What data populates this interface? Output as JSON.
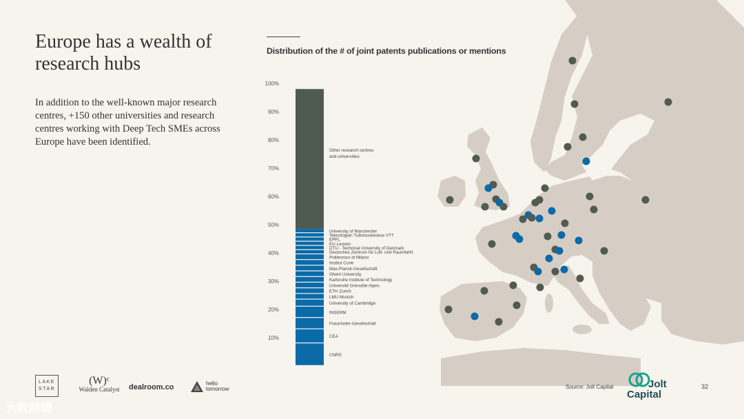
{
  "slide": {
    "title": "Europe has a wealth of research hubs",
    "body": "In addition to the well-known major research centres, +150 other universities and research centres working with Deep Tech SMEs across Europe have been identified.",
    "source": "Source: Jolt Capital",
    "page_number": "32",
    "watermark": "大数跨境"
  },
  "logos": {
    "lakestar_line1": "LAKE",
    "lakestar_line2": "STAR",
    "walden_mark": "(W)ᶜ",
    "walden_name": "Walden Catalyst",
    "dealroom": "dealroom.co",
    "hello_line1": "hello",
    "hello_line2": "tomorrow",
    "jolt_line1": "Jolt",
    "jolt_line2": "Capital"
  },
  "colors": {
    "background": "#f7f4ee",
    "land": "#d6cec5",
    "other_segment": "#4f5a51",
    "named_segment": "#0b6aa8",
    "dot_grey": "#525b52",
    "dot_blue": "#0b6aa8",
    "jolt_brand": "#1aa08f"
  },
  "chart_data": {
    "type": "bar",
    "title": "Distribution of the # of joint patents publications or mentions",
    "stacked": true,
    "ylim": [
      0,
      100
    ],
    "y_ticks": [
      "10%",
      "20%",
      "30%",
      "40%",
      "50%",
      "60%",
      "70%",
      "80%",
      "90%",
      "100%"
    ],
    "segments": [
      {
        "name": "CNRS",
        "value": 8.0
      },
      {
        "name": "CEA",
        "value": 5.0
      },
      {
        "name": "Fraunhofer-Gesellschaft",
        "value": 4.0
      },
      {
        "name": "INSERM",
        "value": 4.0
      },
      {
        "name": "University of Cambridge",
        "value": 2.5
      },
      {
        "name": "LMU Munich",
        "value": 2.0
      },
      {
        "name": "ETH Zurich",
        "value": 2.0
      },
      {
        "name": "Université Grenoble Alpes",
        "value": 2.0
      },
      {
        "name": "Karlsruhe Institute of Technology",
        "value": 2.0
      },
      {
        "name": "Ghent University",
        "value": 2.0
      },
      {
        "name": "Max-Planck-Gesellschaft",
        "value": 2.0
      },
      {
        "name": "Institut Curie",
        "value": 2.0
      },
      {
        "name": "Politecnico di Milano",
        "value": 2.0
      },
      {
        "name": "Deutsches Zentrum für Luft- und Raumfahrt",
        "value": 1.5
      },
      {
        "name": "DTU - Technical University of Denmark",
        "value": 1.5
      },
      {
        "name": "KU Leuven",
        "value": 1.5
      },
      {
        "name": "EPFL",
        "value": 1.5
      },
      {
        "name": "Teknologian Tutkimuskeskus VTT",
        "value": 1.5
      },
      {
        "name": "University of Manchester",
        "value": 1.5
      },
      {
        "name": "Other research centres and universities",
        "value": 49.5
      }
    ]
  }
}
